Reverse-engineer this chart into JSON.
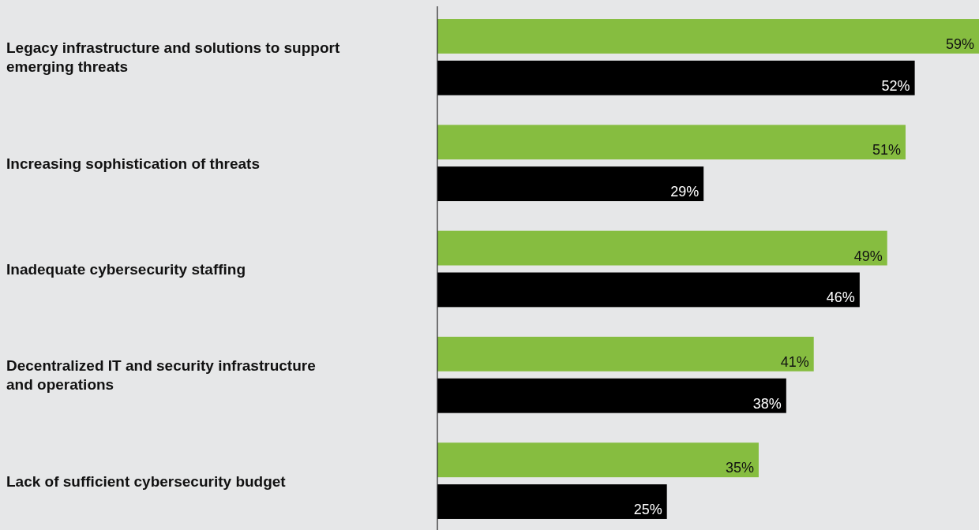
{
  "chart_data": {
    "type": "bar",
    "orientation": "horizontal",
    "categories": [
      "Legacy infrastructure and solutions to support emerging threats",
      "Increasing sophistication of threats",
      "Inadequate cybersecurity staffing",
      "Decentralized IT and security infrastructure and operations",
      "Lack of sufficient cybersecurity budget"
    ],
    "series": [
      {
        "color": "#86bd40",
        "values": [
          59,
          51,
          49,
          41,
          35
        ],
        "value_labels": [
          "59%",
          "51%",
          "49%",
          "41%",
          "35%"
        ]
      },
      {
        "color": "#000000",
        "values": [
          52,
          29,
          46,
          38,
          25
        ],
        "value_labels": [
          "52%",
          "29%",
          "46%",
          "38%",
          "25%"
        ]
      }
    ]
  }
}
